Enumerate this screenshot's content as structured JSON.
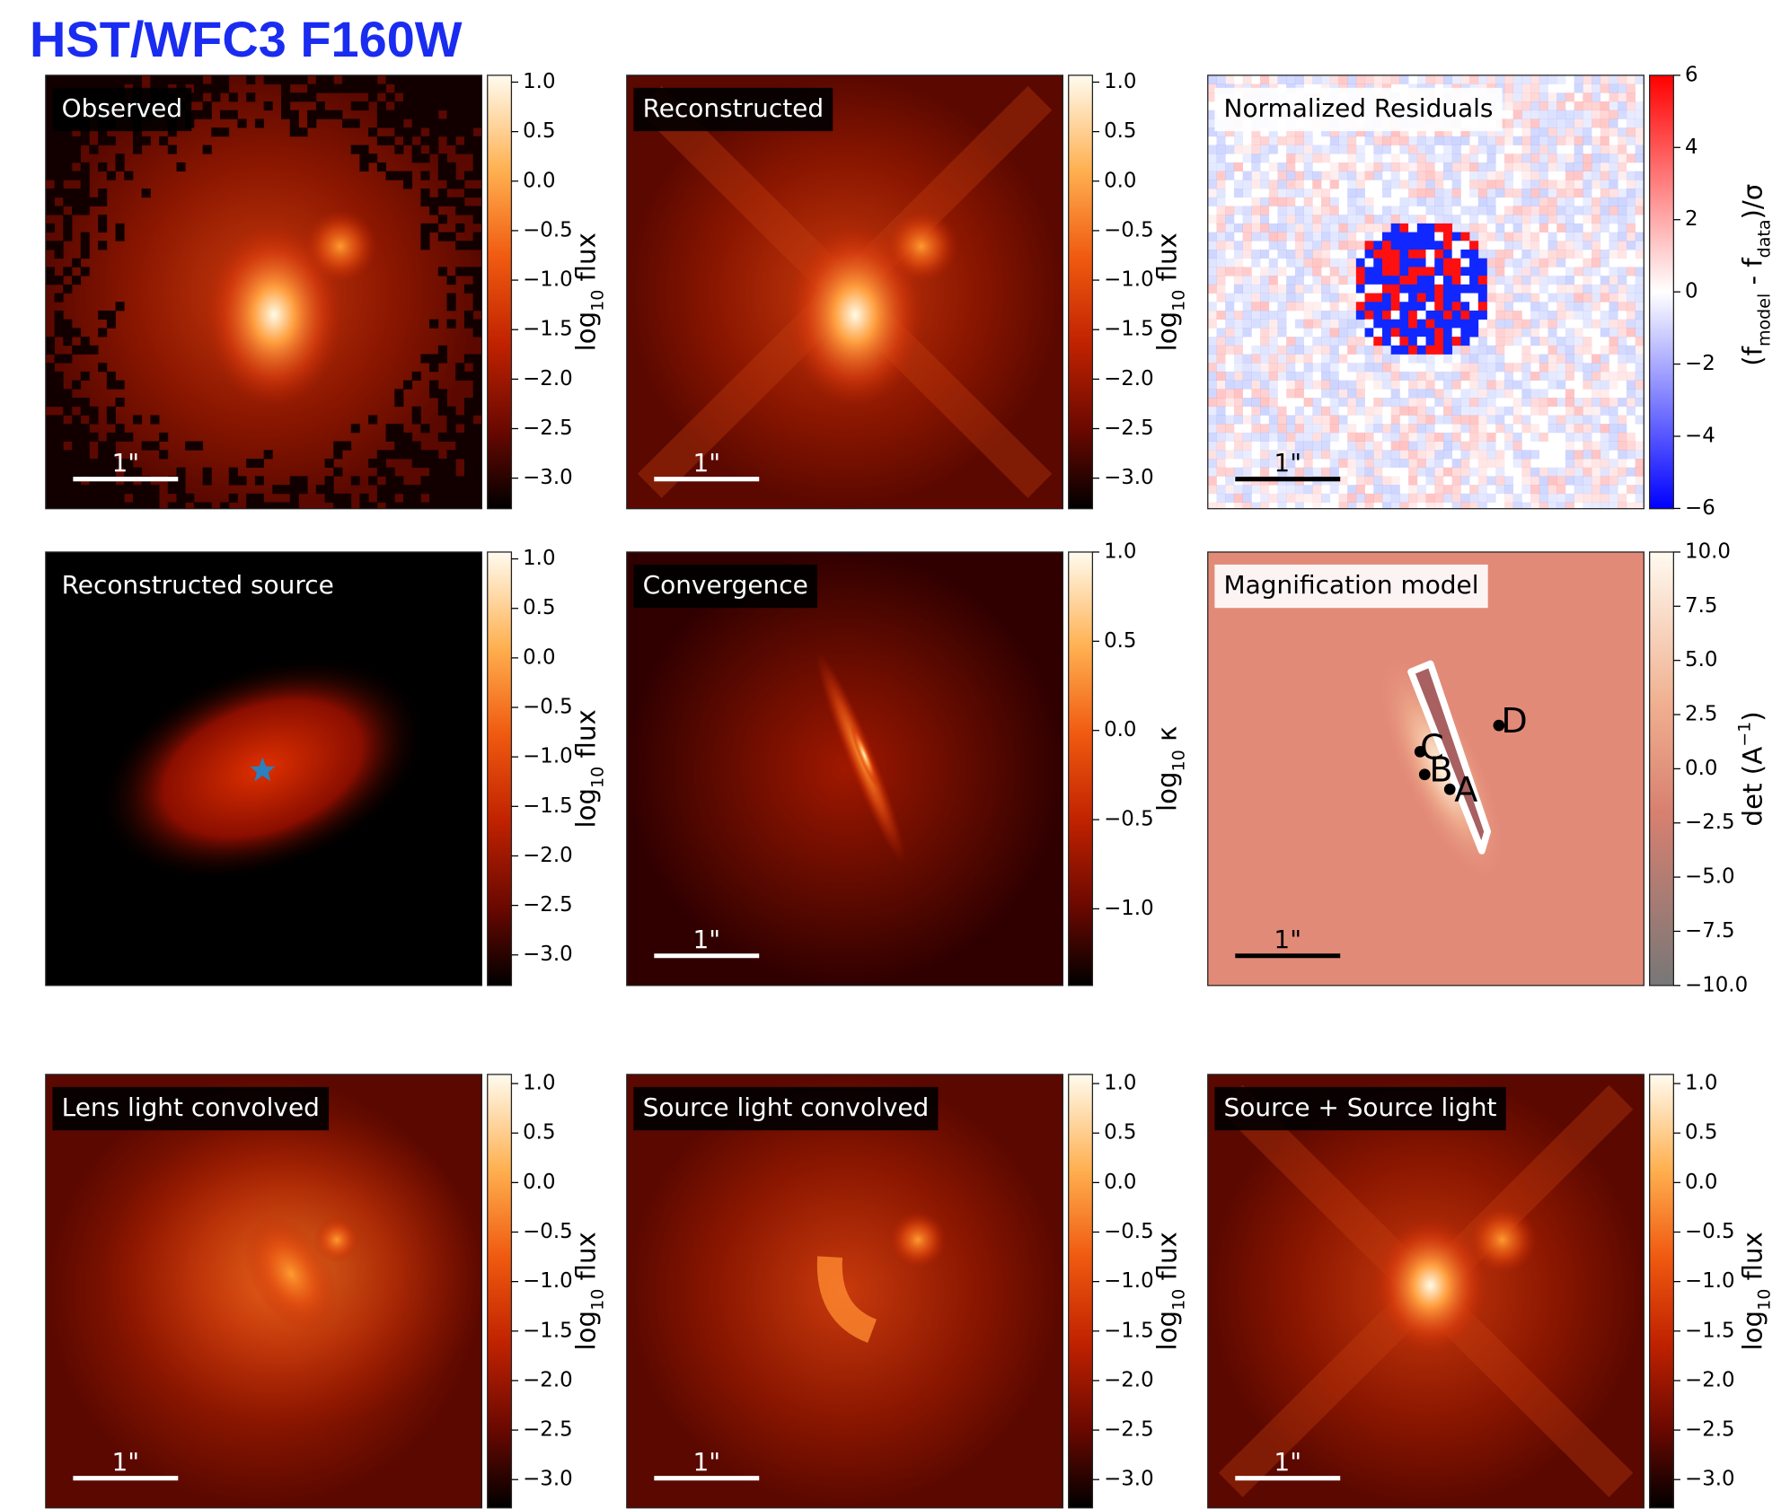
{
  "title": "HST/WFC3 F160W",
  "panels": [
    {
      "label": "Observed",
      "scale_bar": "1\"",
      "colorbar": {
        "ticks": [
          "1.0",
          "0.5",
          "0.0",
          "−0.5",
          "−1.0",
          "−1.5",
          "−2.0",
          "−2.5",
          "−3.0"
        ],
        "label": [
          {
            "text": "log"
          },
          {
            "sub": "10"
          },
          {
            "text": " flux"
          }
        ]
      }
    },
    {
      "label": "Reconstructed",
      "scale_bar": "1\"",
      "colorbar": {
        "ticks": [
          "1.0",
          "0.5",
          "0.0",
          "−0.5",
          "−1.0",
          "−1.5",
          "−2.0",
          "−2.5",
          "−3.0"
        ],
        "label": [
          {
            "text": "log"
          },
          {
            "sub": "10"
          },
          {
            "text": " flux"
          }
        ]
      }
    },
    {
      "label": "Normalized Residuals",
      "scale_bar": "1\"",
      "colorbar": {
        "ticks": [
          "6",
          "4",
          "2",
          "0",
          "−2",
          "−4",
          "−6"
        ],
        "label": [
          {
            "text": "(f"
          },
          {
            "sub": "model"
          },
          {
            "text": " - f"
          },
          {
            "sub": "data"
          },
          {
            "text": ")/σ"
          }
        ]
      }
    },
    {
      "label": "Reconstructed source",
      "colorbar": {
        "ticks": [
          "1.0",
          "0.5",
          "0.0",
          "−0.5",
          "−1.0",
          "−1.5",
          "−2.0",
          "−2.5",
          "−3.0"
        ],
        "label": [
          {
            "text": "log"
          },
          {
            "sub": "10"
          },
          {
            "text": " flux"
          }
        ]
      }
    },
    {
      "label": "Convergence",
      "scale_bar": "1\"",
      "colorbar": {
        "ticks": [
          "1.0",
          "0.5",
          "0.0",
          "−0.5",
          "−1.0"
        ],
        "label": [
          {
            "text": "log"
          },
          {
            "sub": "10"
          },
          {
            "text": " κ"
          }
        ]
      }
    },
    {
      "label": "Magnification model",
      "scale_bar": "1\"",
      "images": [
        "C",
        "B",
        "A",
        "D"
      ],
      "colorbar": {
        "ticks": [
          "10.0",
          "7.5",
          "5.0",
          "2.5",
          "0.0",
          "−2.5",
          "−5.0",
          "−7.5",
          "−10.0"
        ],
        "label": [
          {
            "text": "det  (A"
          },
          {
            "sup": "−1"
          },
          {
            "text": ")"
          }
        ]
      }
    },
    {
      "label": "Lens light convolved",
      "scale_bar": "1\"",
      "colorbar": {
        "ticks": [
          "1.0",
          "0.5",
          "0.0",
          "−0.5",
          "−1.0",
          "−1.5",
          "−2.0",
          "−2.5",
          "−3.0"
        ],
        "label": [
          {
            "text": "log"
          },
          {
            "sub": "10"
          },
          {
            "text": " flux"
          }
        ]
      }
    },
    {
      "label": "Source light convolved",
      "scale_bar": "1\"",
      "colorbar": {
        "ticks": [
          "1.0",
          "0.5",
          "0.0",
          "−0.5",
          "−1.0",
          "−1.5",
          "−2.0",
          "−2.5",
          "−3.0"
        ],
        "label": [
          {
            "text": "log"
          },
          {
            "sub": "10"
          },
          {
            "text": " flux"
          }
        ]
      }
    },
    {
      "label": "Source + Source light",
      "scale_bar": "1\"",
      "colorbar": {
        "ticks": [
          "1.0",
          "0.5",
          "0.0",
          "−0.5",
          "−1.0",
          "−1.5",
          "−2.0",
          "−2.5",
          "−3.0"
        ],
        "label": [
          {
            "text": "log"
          },
          {
            "sub": "10"
          },
          {
            "text": " flux"
          }
        ]
      }
    }
  ]
}
